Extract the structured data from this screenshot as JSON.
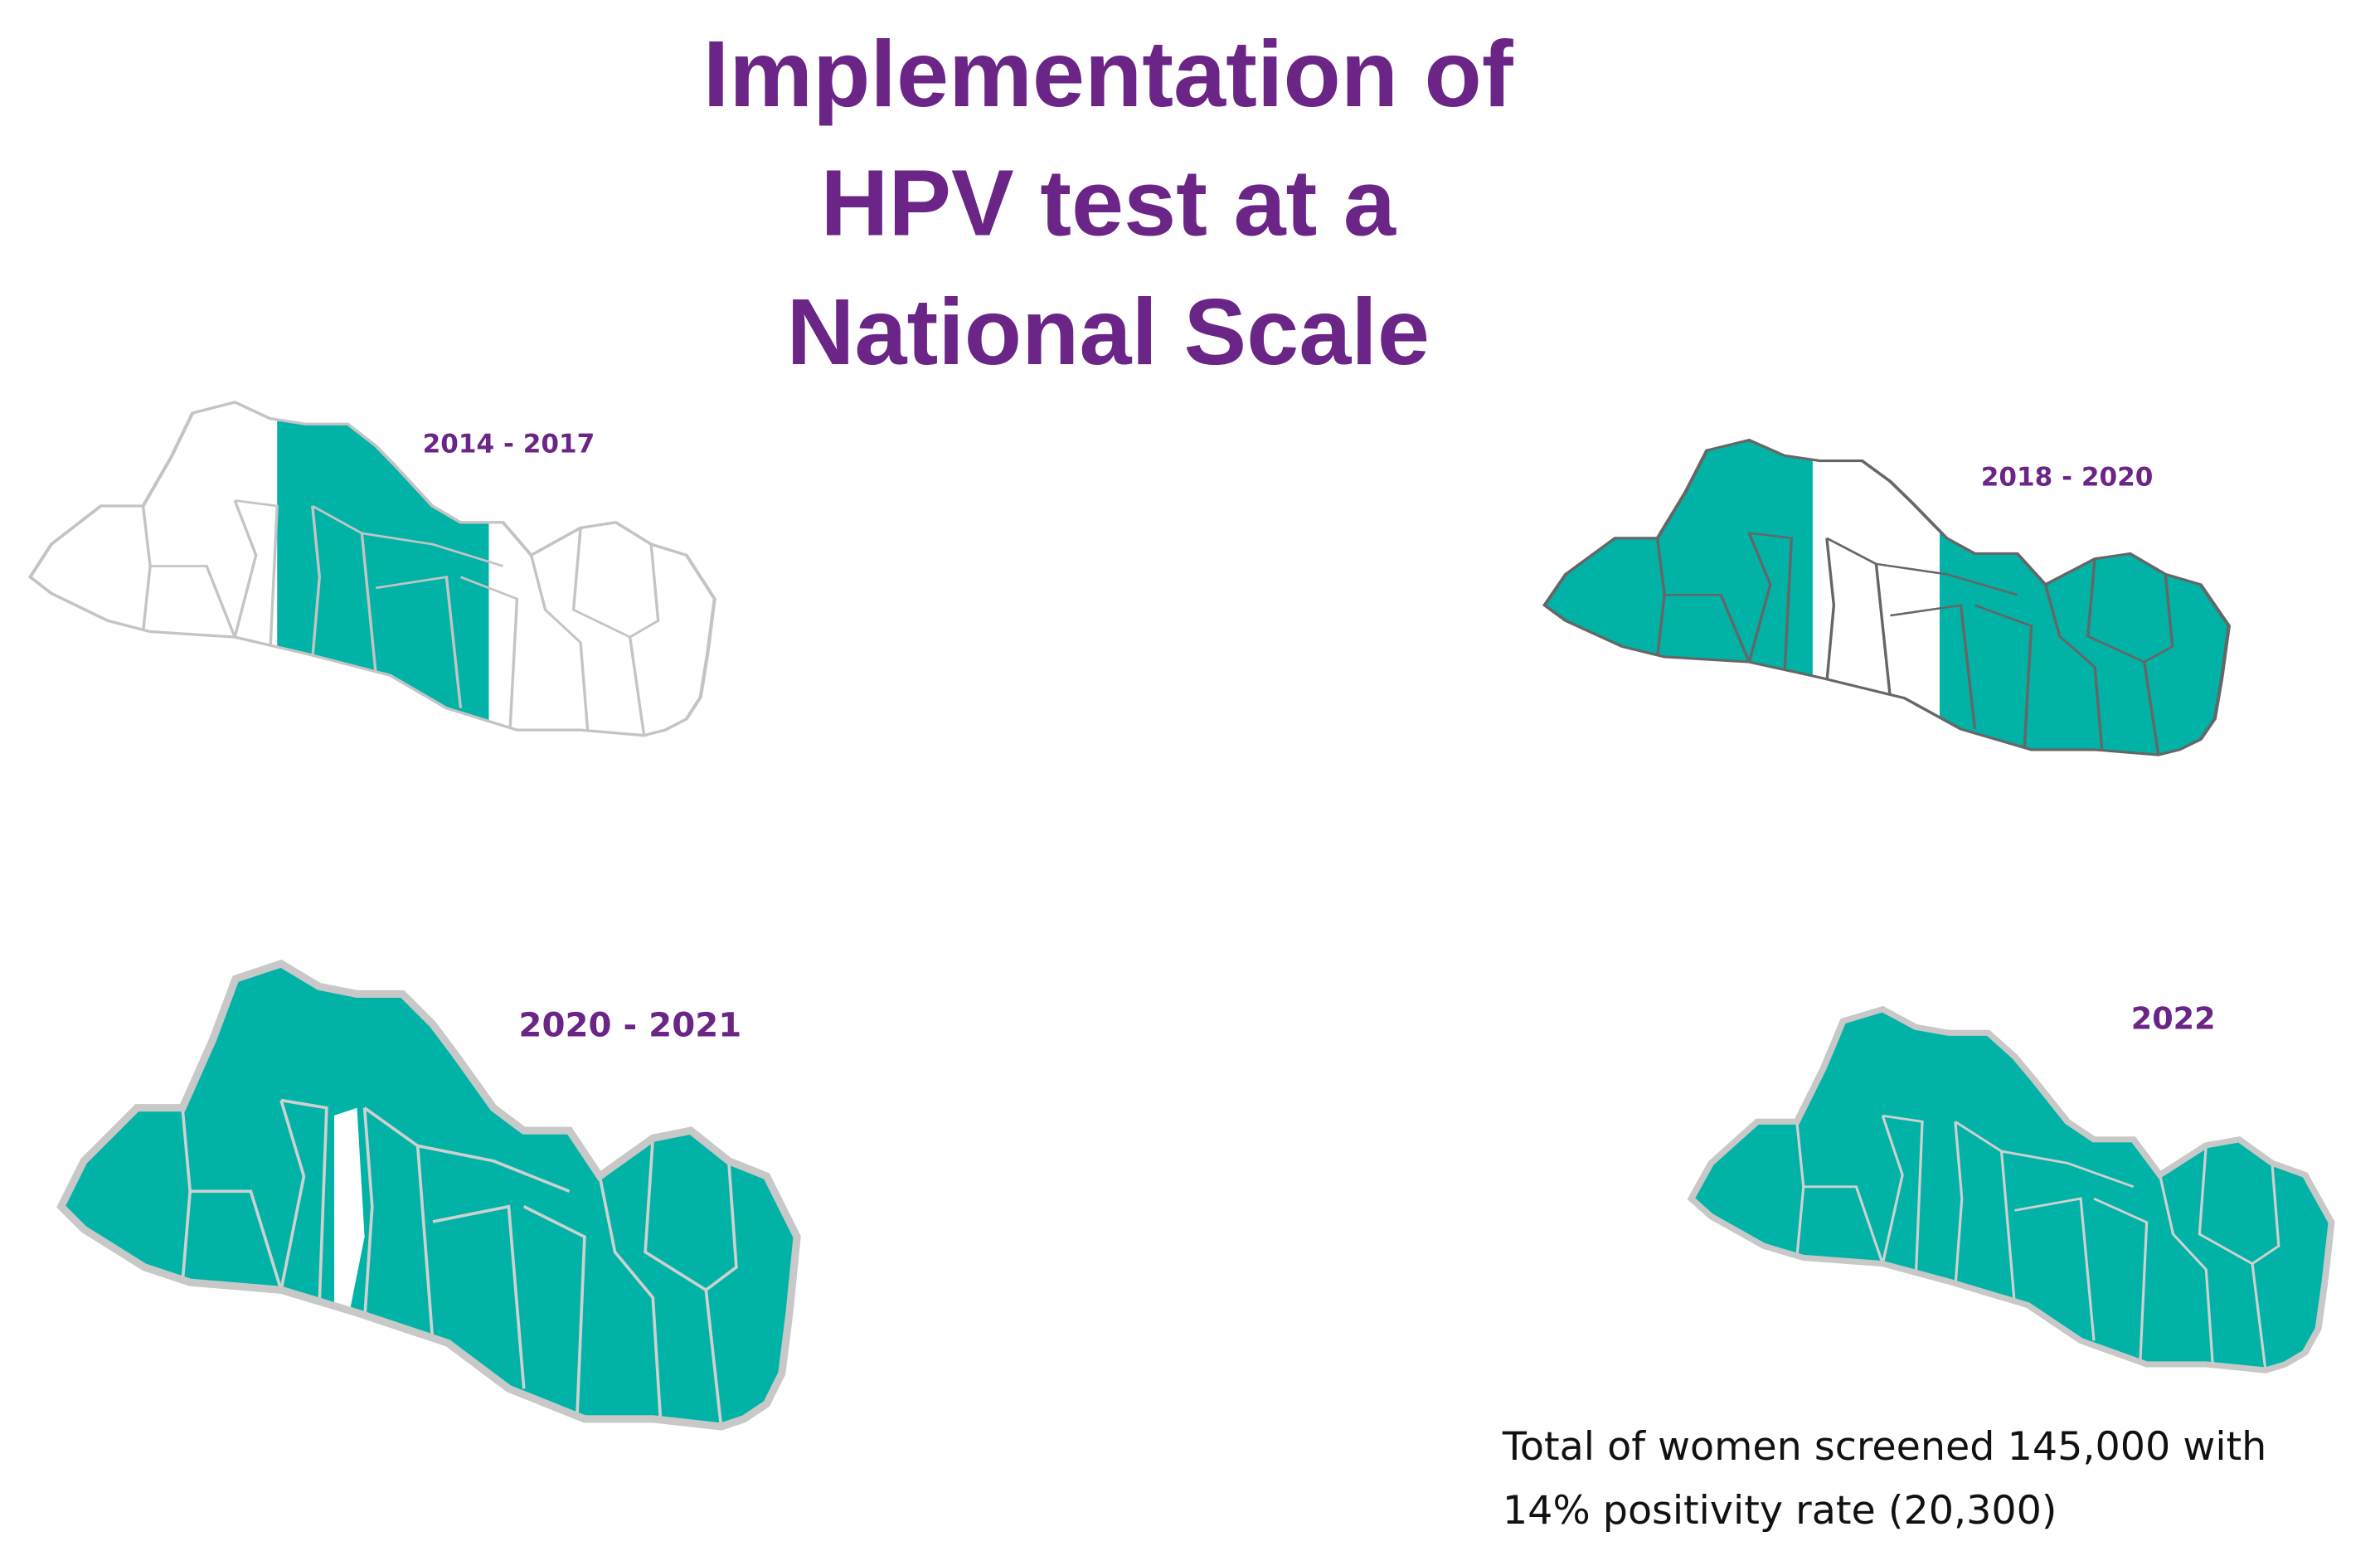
{
  "title": [
    "Implementation of",
    "HPV test at a",
    "National Scale"
  ],
  "maps": [
    {
      "label": "2014 - 2017"
    },
    {
      "label": "2018 - 2020"
    },
    {
      "label": "2020 - 2021"
    },
    {
      "label": "2022"
    }
  ],
  "note": [
    "Total of women screened 145,000 with",
    "14% positivity rate (20,300)"
  ]
}
